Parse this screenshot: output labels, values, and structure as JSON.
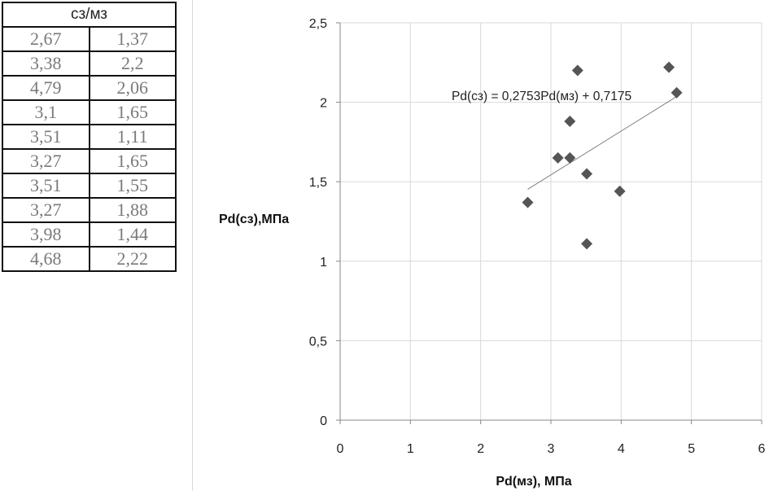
{
  "table": {
    "header": "сз/мз",
    "rows": [
      [
        "2,67",
        "1,37"
      ],
      [
        "3,38",
        "2,2"
      ],
      [
        "4,79",
        "2,06"
      ],
      [
        "3,1",
        "1,65"
      ],
      [
        "3,51",
        "1,11"
      ],
      [
        "3,27",
        "1,65"
      ],
      [
        "3,51",
        "1,55"
      ],
      [
        "3,27",
        "1,88"
      ],
      [
        "3,98",
        "1,44"
      ],
      [
        "4,68",
        "2,22"
      ]
    ]
  },
  "chart_data": {
    "type": "scatter",
    "xlabel": "Pd(мз), МПа",
    "ylabel": "Pd(сз),МПа",
    "xlim": [
      0,
      6
    ],
    "ylim": [
      0,
      2.5
    ],
    "x_ticks": [
      "0",
      "1",
      "2",
      "3",
      "4",
      "5",
      "6"
    ],
    "y_ticks": [
      "0",
      "0,5",
      "1",
      "1,5",
      "2",
      "2,5"
    ],
    "grid": true,
    "marker": "diamond",
    "marker_color": "#555555",
    "points": [
      {
        "x": 2.67,
        "y": 1.37
      },
      {
        "x": 3.38,
        "y": 2.2
      },
      {
        "x": 4.79,
        "y": 2.06
      },
      {
        "x": 3.1,
        "y": 1.65
      },
      {
        "x": 3.51,
        "y": 1.11
      },
      {
        "x": 3.27,
        "y": 1.65
      },
      {
        "x": 3.51,
        "y": 1.55
      },
      {
        "x": 3.27,
        "y": 1.88
      },
      {
        "x": 3.98,
        "y": 1.44
      },
      {
        "x": 4.68,
        "y": 2.22
      }
    ],
    "trendline": {
      "slope": 0.2753,
      "intercept": 0.7175,
      "x_range": [
        2.67,
        4.79
      ],
      "equation": "Pd(сз) = 0,2753Pd(мз) + 0,7175",
      "color": "#808080"
    }
  }
}
